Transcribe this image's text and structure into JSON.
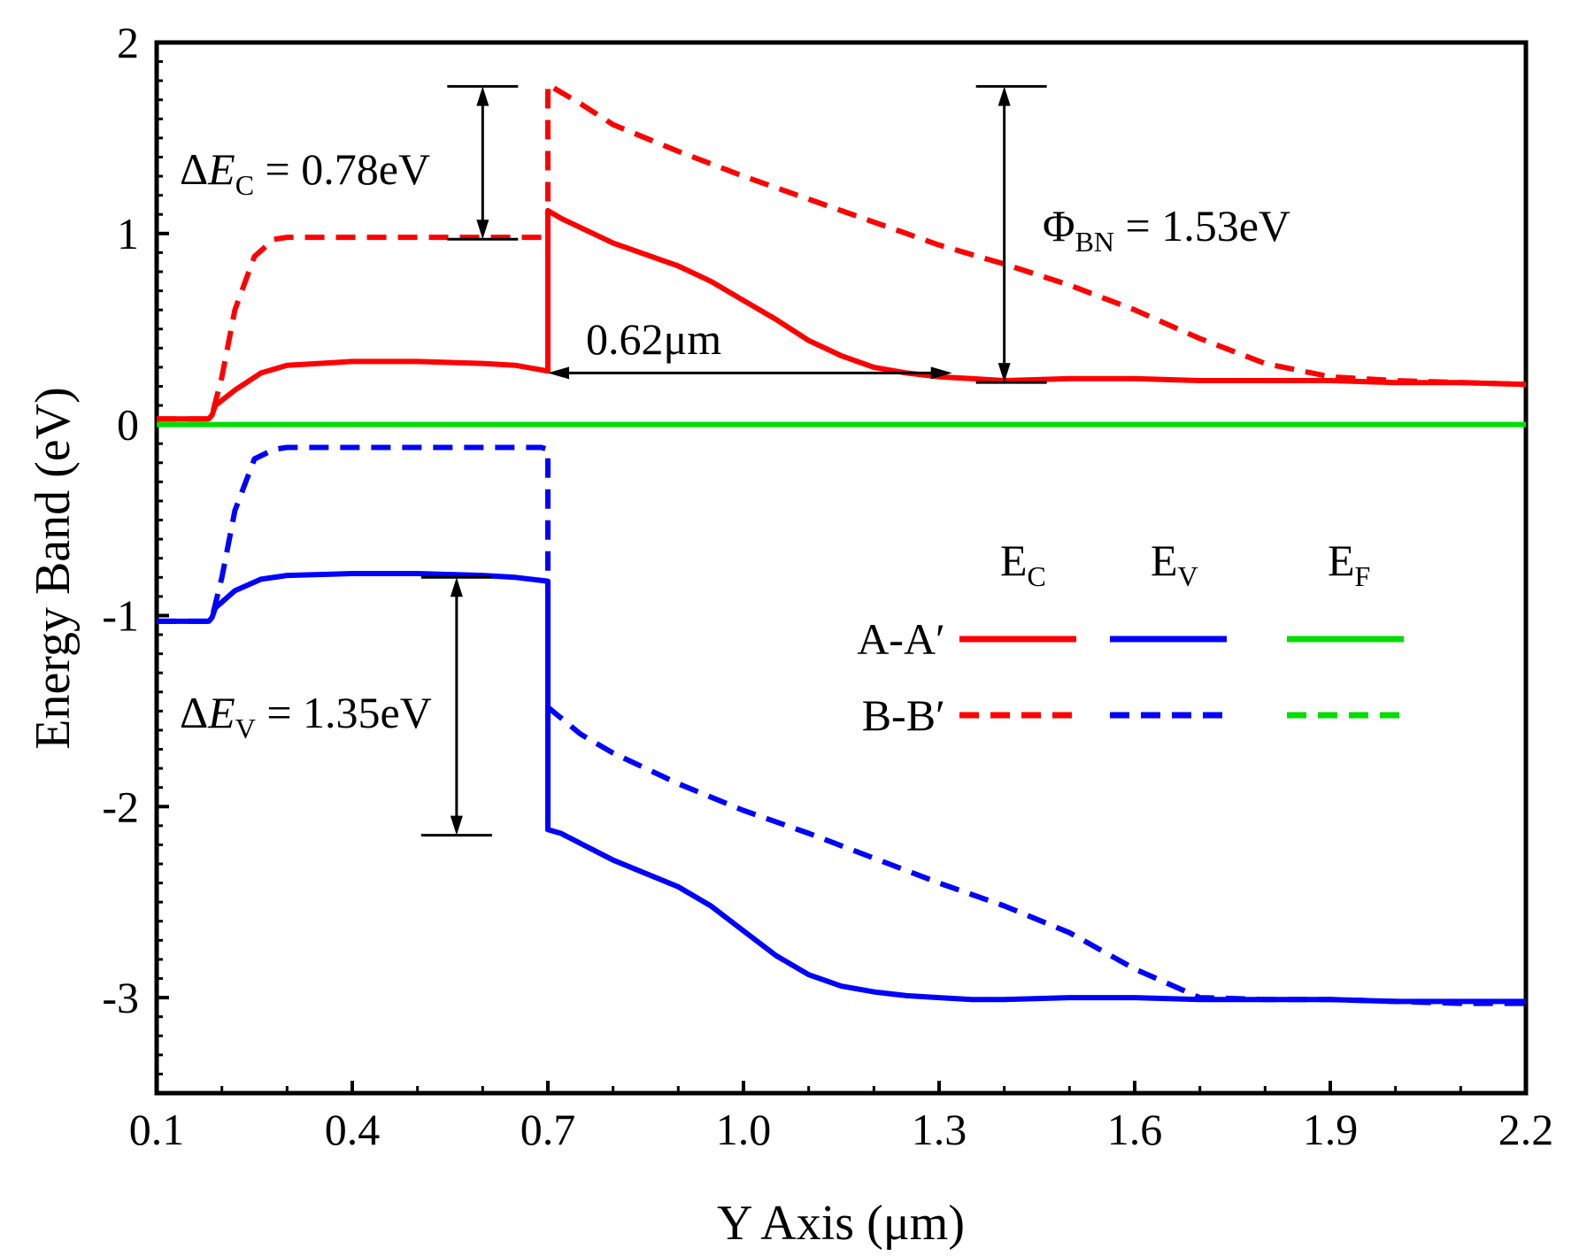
{
  "chart_data": {
    "type": "line",
    "xlabel": "Y Axis (μm)",
    "ylabel": "Energy Band (eV)",
    "xlim": [
      0.1,
      2.2
    ],
    "ylim": [
      -3.5,
      2
    ],
    "xticks": [
      0.1,
      0.4,
      0.7,
      1.0,
      1.3,
      1.6,
      1.9,
      2.2
    ],
    "xtick_labels": [
      "0.1",
      "0.4",
      "0.7",
      "1.0",
      "1.3",
      "1.6",
      "1.9",
      "2.2"
    ],
    "yticks": [
      -3,
      -2,
      -1,
      0,
      1,
      2
    ],
    "ytick_labels": [
      "-3",
      "-2",
      "-1",
      "0",
      "1",
      "2"
    ],
    "legend": {
      "position": "center-right",
      "columns": [
        {
          "label": "E",
          "sub": "C"
        },
        {
          "label": "E",
          "sub": "V"
        },
        {
          "label": "E",
          "sub": "F"
        }
      ],
      "rows": [
        "A-A′",
        "B-B′"
      ]
    },
    "colors": {
      "ec": "#ff0000",
      "ev": "#0000ff",
      "ef": "#00dd00",
      "annot": "#000000"
    },
    "series": [
      {
        "name": "E_C A-A′",
        "color": "#ff0000",
        "style": "solid",
        "x": [
          0.1,
          0.18,
          0.185,
          0.19,
          0.22,
          0.26,
          0.3,
          0.4,
          0.5,
          0.6,
          0.65,
          0.7,
          0.7,
          0.72,
          0.8,
          0.9,
          0.95,
          1.0,
          1.05,
          1.1,
          1.15,
          1.2,
          1.25,
          1.3,
          1.35,
          1.4,
          1.5,
          1.6,
          1.7,
          1.8,
          1.9,
          2.0,
          2.1,
          2.2
        ],
        "y": [
          0.03,
          0.03,
          0.05,
          0.1,
          0.18,
          0.27,
          0.31,
          0.33,
          0.33,
          0.32,
          0.31,
          0.28,
          1.12,
          1.08,
          0.95,
          0.83,
          0.75,
          0.65,
          0.55,
          0.44,
          0.36,
          0.3,
          0.27,
          0.25,
          0.24,
          0.23,
          0.24,
          0.24,
          0.23,
          0.23,
          0.23,
          0.22,
          0.22,
          0.21
        ]
      },
      {
        "name": "E_C B-B′",
        "color": "#ff0000",
        "style": "dashed",
        "x": [
          0.1,
          0.18,
          0.185,
          0.2,
          0.22,
          0.25,
          0.28,
          0.3,
          0.4,
          0.5,
          0.6,
          0.69,
          0.7,
          0.7,
          0.75,
          0.8,
          0.9,
          1.0,
          1.1,
          1.2,
          1.3,
          1.4,
          1.5,
          1.6,
          1.7,
          1.8,
          1.9,
          2.0,
          2.1,
          2.2
        ],
        "y": [
          0.03,
          0.03,
          0.05,
          0.25,
          0.6,
          0.88,
          0.97,
          0.98,
          0.98,
          0.98,
          0.98,
          0.98,
          0.98,
          1.78,
          1.68,
          1.57,
          1.43,
          1.3,
          1.18,
          1.06,
          0.94,
          0.84,
          0.73,
          0.6,
          0.45,
          0.32,
          0.25,
          0.23,
          0.22,
          0.21
        ]
      },
      {
        "name": "E_V A-A′",
        "color": "#0000ff",
        "style": "solid",
        "x": [
          0.1,
          0.18,
          0.185,
          0.19,
          0.22,
          0.26,
          0.3,
          0.4,
          0.5,
          0.6,
          0.65,
          0.7,
          0.7,
          0.72,
          0.8,
          0.9,
          0.95,
          1.0,
          1.05,
          1.1,
          1.15,
          1.2,
          1.25,
          1.3,
          1.35,
          1.4,
          1.5,
          1.6,
          1.7,
          1.8,
          1.9,
          2.0,
          2.1,
          2.2
        ],
        "y": [
          -1.03,
          -1.03,
          -1.01,
          -0.96,
          -0.87,
          -0.81,
          -0.79,
          -0.78,
          -0.78,
          -0.79,
          -0.8,
          -0.82,
          -2.12,
          -2.14,
          -2.28,
          -2.42,
          -2.52,
          -2.65,
          -2.78,
          -2.88,
          -2.94,
          -2.97,
          -2.99,
          -3.0,
          -3.01,
          -3.01,
          -3.0,
          -3.0,
          -3.01,
          -3.01,
          -3.01,
          -3.02,
          -3.02,
          -3.02
        ]
      },
      {
        "name": "E_V B-B′",
        "color": "#0000ff",
        "style": "dashed",
        "x": [
          0.1,
          0.18,
          0.185,
          0.2,
          0.22,
          0.25,
          0.28,
          0.3,
          0.4,
          0.5,
          0.6,
          0.69,
          0.7,
          0.7,
          0.75,
          0.8,
          0.9,
          1.0,
          1.1,
          1.2,
          1.3,
          1.4,
          1.5,
          1.6,
          1.7,
          1.8,
          1.9,
          2.0,
          2.1,
          2.2
        ],
        "y": [
          -1.03,
          -1.03,
          -1.01,
          -0.8,
          -0.45,
          -0.18,
          -0.13,
          -0.12,
          -0.12,
          -0.12,
          -0.12,
          -0.12,
          -0.13,
          -1.48,
          -1.62,
          -1.72,
          -1.88,
          -2.02,
          -2.14,
          -2.27,
          -2.4,
          -2.52,
          -2.66,
          -2.85,
          -3.0,
          -3.01,
          -3.01,
          -3.02,
          -3.03,
          -3.03
        ]
      },
      {
        "name": "E_F A-A′",
        "color": "#00dd00",
        "style": "solid",
        "x": [
          0.1,
          2.2
        ],
        "y": [
          0.0,
          0.0
        ]
      }
    ],
    "annotations": [
      {
        "label": "ΔE",
        "sub": "C",
        "value": " = 0.78eV",
        "x": 0.6,
        "y_from": 0.97,
        "y_to": 1.77
      },
      {
        "label": "Φ",
        "sub": "BN",
        "value": " = 1.53eV",
        "x": 1.4,
        "y_from": 0.22,
        "y_to": 1.77
      },
      {
        "label": "0.62μm",
        "x_from": 0.7,
        "x_to": 1.32,
        "y": 0.27
      },
      {
        "label": "ΔE",
        "sub": "V",
        "value": " = 1.35eV",
        "x": 0.56,
        "y_from": -0.8,
        "y_to": -2.15
      }
    ]
  }
}
